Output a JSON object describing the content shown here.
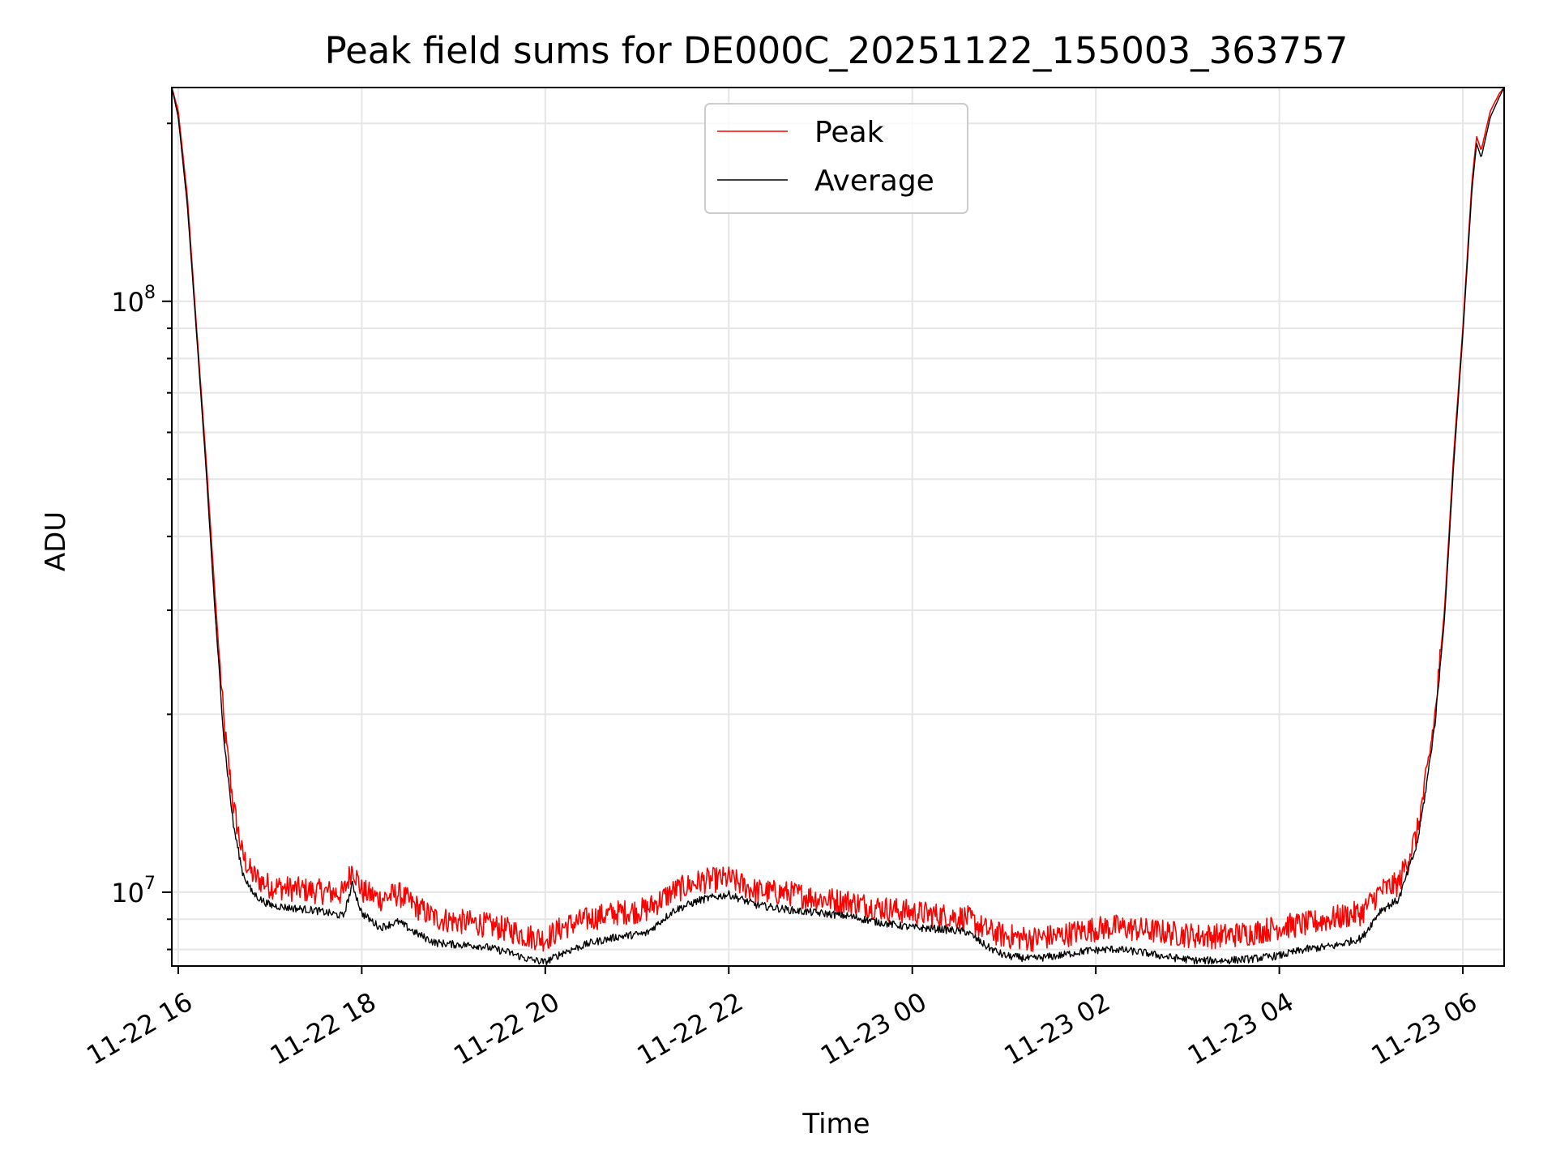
{
  "chart_data": {
    "type": "line",
    "title": "Peak field sums for DE000C_20251122_155003_363757",
    "xlabel": "Time",
    "ylabel": "ADU",
    "yscale": "log",
    "ylim": [
      7500000,
      230000000
    ],
    "xlim_hours": [
      15.93,
      30.45
    ],
    "x_ticks": [
      {
        "hour": 16,
        "label": "11-22 16"
      },
      {
        "hour": 18,
        "label": "11-22 18"
      },
      {
        "hour": 20,
        "label": "11-22 20"
      },
      {
        "hour": 22,
        "label": "11-22 22"
      },
      {
        "hour": 24,
        "label": "11-23 00"
      },
      {
        "hour": 26,
        "label": "11-23 02"
      },
      {
        "hour": 28,
        "label": "11-23 04"
      },
      {
        "hour": 30,
        "label": "11-23 06"
      }
    ],
    "y_ticks": [
      {
        "value": 10000000,
        "base": "10",
        "exp": "7"
      },
      {
        "value": 100000000,
        "base": "10",
        "exp": "8"
      }
    ],
    "grid": true,
    "legend_position": "top-center",
    "colors": {
      "peak": "#ff0000",
      "average": "#000000",
      "grid": "#e6e6e6"
    },
    "series": [
      {
        "name": "Peak",
        "color": "#ff0000",
        "x_hours": [
          15.93,
          16.0,
          16.1,
          16.2,
          16.3,
          16.4,
          16.5,
          16.6,
          16.7,
          16.8,
          16.9,
          17.0,
          17.2,
          17.5,
          17.8,
          17.9,
          18.0,
          18.2,
          18.4,
          18.6,
          18.8,
          19.0,
          19.3,
          19.6,
          19.8,
          20.0,
          20.2,
          20.5,
          20.8,
          21.1,
          21.4,
          21.7,
          22.0,
          22.3,
          22.7,
          23.0,
          23.3,
          23.6,
          24.0,
          24.3,
          24.6,
          24.8,
          25.0,
          25.3,
          25.6,
          25.9,
          26.2,
          26.5,
          26.8,
          27.1,
          27.4,
          27.7,
          28.0,
          28.3,
          28.6,
          28.9,
          29.1,
          29.3,
          29.5,
          29.6,
          29.7,
          29.8,
          29.9,
          30.0,
          30.1,
          30.15,
          30.2,
          30.3,
          30.4,
          30.45
        ],
        "values": [
          230000000,
          210000000,
          150000000,
          90000000,
          55000000,
          32000000,
          19000000,
          14000000,
          11500000,
          10700000,
          10400000,
          10200000,
          10100000,
          10000000,
          9900000,
          11000000,
          10000000,
          9700000,
          9900000,
          9400000,
          9000000,
          8900000,
          8800000,
          8600000,
          8400000,
          8300000,
          8700000,
          9000000,
          9200000,
          9300000,
          10000000,
          10400000,
          10500000,
          10000000,
          9900000,
          9700000,
          9600000,
          9400000,
          9200000,
          9100000,
          9000000,
          8600000,
          8400000,
          8300000,
          8400000,
          8600000,
          8700000,
          8600000,
          8500000,
          8400000,
          8400000,
          8500000,
          8700000,
          8800000,
          9000000,
          9200000,
          10000000,
          10300000,
          12500000,
          15500000,
          20000000,
          30000000,
          55000000,
          90000000,
          160000000,
          190000000,
          180000000,
          210000000,
          225000000,
          230000000
        ]
      },
      {
        "name": "Average",
        "color": "#000000",
        "x_hours": [
          15.93,
          16.0,
          16.1,
          16.2,
          16.3,
          16.4,
          16.5,
          16.6,
          16.7,
          16.8,
          16.9,
          17.0,
          17.2,
          17.5,
          17.8,
          17.9,
          18.0,
          18.2,
          18.4,
          18.6,
          18.8,
          19.0,
          19.3,
          19.6,
          19.8,
          20.0,
          20.2,
          20.5,
          20.8,
          21.1,
          21.4,
          21.7,
          22.0,
          22.3,
          22.7,
          23.0,
          23.3,
          23.6,
          24.0,
          24.3,
          24.6,
          24.8,
          25.0,
          25.3,
          25.6,
          25.9,
          26.2,
          26.5,
          26.8,
          27.1,
          27.4,
          27.7,
          28.0,
          28.3,
          28.6,
          28.9,
          29.1,
          29.3,
          29.5,
          29.6,
          29.7,
          29.8,
          29.9,
          30.0,
          30.1,
          30.15,
          30.2,
          30.3,
          30.4,
          30.45
        ],
        "values": [
          230000000,
          205000000,
          145000000,
          88000000,
          53000000,
          30000000,
          18000000,
          13000000,
          10800000,
          10000000,
          9700000,
          9500000,
          9400000,
          9300000,
          9100000,
          10300000,
          9200000,
          8700000,
          8900000,
          8500000,
          8200000,
          8150000,
          8100000,
          7900000,
          7700000,
          7600000,
          7900000,
          8200000,
          8400000,
          8500000,
          9300000,
          9700000,
          9900000,
          9500000,
          9300000,
          9200000,
          9100000,
          8900000,
          8700000,
          8650000,
          8550000,
          8100000,
          7800000,
          7700000,
          7800000,
          7950000,
          8000000,
          7900000,
          7750000,
          7650000,
          7650000,
          7700000,
          7800000,
          8000000,
          8100000,
          8350000,
          9300000,
          9700000,
          12000000,
          15000000,
          19500000,
          29000000,
          53000000,
          88000000,
          155000000,
          185000000,
          175000000,
          205000000,
          222000000,
          230000000
        ]
      }
    ]
  }
}
